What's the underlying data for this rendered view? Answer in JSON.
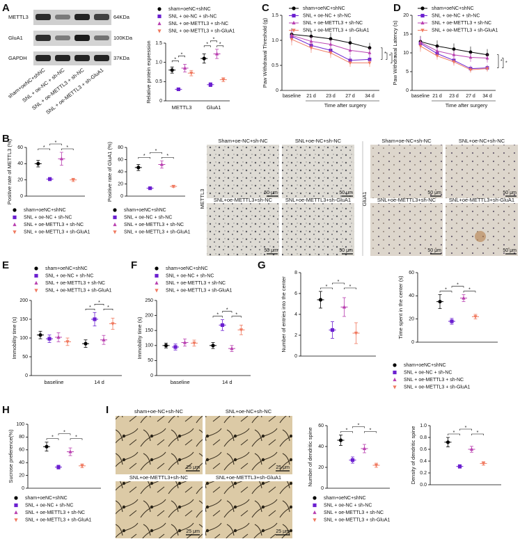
{
  "panel_labels": [
    "A",
    "B",
    "C",
    "D",
    "E",
    "F",
    "G",
    "H",
    "I"
  ],
  "blot": {
    "rows": [
      "METTL3",
      "GluA1",
      "GAPDH"
    ],
    "sizes": [
      "64KDa",
      "100KDa",
      "37KDa"
    ],
    "lanes": [
      "sham+oeNC+shNC",
      "SNL + oe-NC + sh-NC",
      "SNL + oe-METTL3 + sh-NC",
      "SNL + oe-METTL3 + sh-GluA1"
    ]
  },
  "ihc": {
    "groups": [
      "Sham+oe-NC+sh-NC",
      "SNL+oe-NC+sh-NC",
      "SNL+oe-METTL3+sh-NC",
      "SNL+oe-METTL3+sh-GluA1"
    ],
    "stains": [
      "METTL3",
      "GluA1"
    ],
    "scale": "50 μm"
  },
  "golgi": {
    "groups": [
      "sham+oe-NC+sh-NC",
      "SNL+oe-NC+sh-NC",
      "SNL+oe-METTL3+sh-NC",
      "SNL+oe-METTL3+sh-GluA1"
    ],
    "scale": "25 μm"
  },
  "chart_data": [
    {
      "type": "dot",
      "ylabel": "Relative protein expression",
      "categories": [
        "METTL3",
        "GluA1"
      ],
      "ylim": [
        0,
        1.5
      ],
      "yticks": [
        0,
        0.5,
        {
          "value": 1,
          "label": "1.0"
        },
        1.5
      ],
      "series": [
        {
          "name": "sham+oeNC+shNC",
          "color": "#000000",
          "marker": "circle",
          "values": [
            0.8,
            1.1
          ],
          "errors": [
            0.08,
            0.12
          ]
        },
        {
          "name": "SNL + oe-NC + sh-NC",
          "color": "#6b1fd0",
          "marker": "square",
          "values": [
            0.3,
            0.42
          ],
          "errors": [
            0.03,
            0.05
          ]
        },
        {
          "name": "SNL + oe-METTL3 + sh-NC",
          "color": "#b940b0",
          "marker": "triangle-up",
          "values": [
            0.85,
            1.22
          ],
          "errors": [
            0.1,
            0.12
          ]
        },
        {
          "name": "SNL + oe-METTL3 + sh-GluA1",
          "color": "#f07a60",
          "marker": "triangle-down",
          "values": [
            0.72,
            0.55
          ],
          "errors": [
            0.07,
            0.05
          ]
        }
      ],
      "significance": [
        [
          "*",
          "*"
        ],
        [
          "*",
          "*",
          "*"
        ]
      ]
    },
    {
      "type": "line",
      "ylabel": "Paw Withdrawal Threshold (g)",
      "xlabel": "Time after surgery",
      "categories": [
        "baseline",
        "21 d",
        "23 d",
        "27 d",
        "34 d"
      ],
      "ylim": [
        0,
        1.5
      ],
      "yticks": [
        0,
        0.5,
        {
          "value": 1,
          "label": "1.0"
        },
        1.5
      ],
      "series": [
        {
          "name": "sham+oeNC+shNC",
          "color": "#000000",
          "marker": "circle",
          "values": [
            1.12,
            1.08,
            1.03,
            0.95,
            0.85
          ],
          "errors": [
            0.12,
            0.12,
            0.12,
            0.12,
            0.1
          ]
        },
        {
          "name": "SNL + oe-NC + sh-NC",
          "color": "#6b1fd0",
          "marker": "square",
          "values": [
            1.08,
            0.9,
            0.8,
            0.6,
            0.62
          ],
          "errors": [
            0.12,
            0.1,
            0.1,
            0.08,
            0.1
          ]
        },
        {
          "name": "SNL + oe-METTL3 + sh-NC",
          "color": "#b940b0",
          "marker": "triangle-up",
          "values": [
            1.1,
            0.98,
            0.92,
            0.8,
            0.75
          ],
          "errors": [
            0.12,
            0.1,
            0.1,
            0.1,
            0.1
          ]
        },
        {
          "name": "SNL + oe-METTL3 + sh-GluA1",
          "color": "#f07a60",
          "marker": "triangle-down",
          "values": [
            1.02,
            0.85,
            0.75,
            0.55,
            0.55
          ],
          "errors": [
            0.12,
            0.1,
            0.1,
            0.08,
            0.08
          ]
        }
      ],
      "significance": [
        "*",
        "*",
        "*"
      ]
    },
    {
      "type": "line",
      "ylabel": "Paw Withdrawal Latency (s)",
      "xlabel": "Time after surgery",
      "categories": [
        "baseline",
        "21 d",
        "23 d",
        "27 d",
        "34 d"
      ],
      "ylim": [
        0,
        20
      ],
      "yticks": [
        0,
        5,
        10,
        15,
        20
      ],
      "series": [
        {
          "name": "sham+oeNC+shNC",
          "color": "#000000",
          "marker": "circle",
          "values": [
            13,
            11.8,
            11,
            10.2,
            9.5
          ],
          "errors": [
            1.5,
            1.5,
            1.5,
            1.5,
            1.5
          ]
        },
        {
          "name": "SNL + oe-NC + sh-NC",
          "color": "#6b1fd0",
          "marker": "square",
          "values": [
            12.5,
            9.8,
            8,
            5.8,
            6
          ],
          "errors": [
            1.5,
            1,
            1,
            0.8,
            0.8
          ]
        },
        {
          "name": "SNL + oe-METTL3 + sh-NC",
          "color": "#b940b0",
          "marker": "triangle-up",
          "values": [
            12.8,
            10.5,
            9.5,
            8.8,
            8.6
          ],
          "errors": [
            1.5,
            1.2,
            1.2,
            1.2,
            1.2
          ]
        },
        {
          "name": "SNL + oe-METTL3 + sh-GluA1",
          "color": "#f07a60",
          "marker": "triangle-down",
          "values": [
            11.8,
            9.2,
            7.6,
            5.5,
            5.8
          ],
          "errors": [
            1.5,
            1,
            1,
            0.8,
            0.8
          ]
        }
      ],
      "significance": [
        "*",
        "*"
      ]
    },
    {
      "type": "dot",
      "ylabel": "Positive rate of METTL3 (%)",
      "categories": [
        null
      ],
      "ylim": [
        0,
        60
      ],
      "yticks": [
        0,
        20,
        40,
        60
      ],
      "series": [
        {
          "name": "sham+oeNC+shNC",
          "color": "#000000",
          "marker": "circle",
          "values": [
            40
          ],
          "errors": [
            4
          ]
        },
        {
          "name": "SNL + oe-NC + sh-NC",
          "color": "#6b1fd0",
          "marker": "square",
          "values": [
            21
          ],
          "errors": [
            2
          ]
        },
        {
          "name": "SNL + oe-METTL3 + sh-NC",
          "color": "#b940b0",
          "marker": "triangle-up",
          "values": [
            46
          ],
          "errors": [
            8
          ]
        },
        {
          "name": "SNL + oe-METTL3 + sh-GluA1",
          "color": "#f07a60",
          "marker": "triangle-down",
          "values": [
            20
          ],
          "errors": [
            2
          ]
        }
      ],
      "significance": [
        [
          "*",
          "*",
          "*"
        ]
      ]
    },
    {
      "type": "dot",
      "ylabel": "Positive rate of GluA1 (%)",
      "categories": [
        null
      ],
      "ylim": [
        0,
        80
      ],
      "yticks": [
        0,
        20,
        40,
        60,
        80
      ],
      "series": [
        {
          "name": "sham+oeNC+shNC",
          "color": "#000000",
          "marker": "circle",
          "values": [
            47
          ],
          "errors": [
            5
          ]
        },
        {
          "name": "SNL + oe-NC + sh-NC",
          "color": "#6b1fd0",
          "marker": "square",
          "values": [
            13
          ],
          "errors": [
            1.5
          ]
        },
        {
          "name": "SNL + oe-METTL3 + sh-NC",
          "color": "#b940b0",
          "marker": "triangle-up",
          "values": [
            52
          ],
          "errors": [
            6
          ]
        },
        {
          "name": "SNL + oe-METTL3 + sh-GluA1",
          "color": "#f07a60",
          "marker": "triangle-down",
          "values": [
            16
          ],
          "errors": [
            1.5
          ]
        }
      ],
      "significance": [
        [
          "*",
          "*",
          "*"
        ]
      ]
    },
    {
      "type": "dot",
      "ylabel": "Immobility time (s)",
      "categories": [
        "baseline",
        "14 d"
      ],
      "ylim": [
        0,
        200
      ],
      "yticks": [
        0,
        50,
        100,
        150,
        200
      ],
      "series": [
        {
          "name": "sham+oeNC+shNC",
          "color": "#000000",
          "marker": "circle",
          "values": [
            108,
            85
          ],
          "errors": [
            10,
            10
          ]
        },
        {
          "name": "SNL + oe-NC + sh-NC",
          "color": "#6b1fd0",
          "marker": "square",
          "values": [
            98,
            150
          ],
          "errors": [
            10,
            18
          ]
        },
        {
          "name": "SNL + oe-METTL3 + sh-NC",
          "color": "#b940b0",
          "marker": "triangle-up",
          "values": [
            102,
            95
          ],
          "errors": [
            12,
            12
          ]
        },
        {
          "name": "SNL + oe-METTL3 + sh-GluA1",
          "color": "#f07a60",
          "marker": "triangle-down",
          "values": [
            90,
            138
          ],
          "errors": [
            10,
            15
          ]
        }
      ],
      "significance": [
        [],
        [
          "*",
          "*",
          "*"
        ]
      ]
    },
    {
      "type": "dot",
      "ylabel": "Immobility time (s)",
      "categories": [
        "baseline",
        "14 d"
      ],
      "ylim": [
        0,
        250
      ],
      "yticks": [
        0,
        50,
        100,
        150,
        200,
        250
      ],
      "series": [
        {
          "name": "sham+oeNC+shNC",
          "color": "#000000",
          "marker": "circle",
          "values": [
            100,
            100
          ],
          "errors": [
            8,
            10
          ]
        },
        {
          "name": "SNL + oe-NC + sh-NC",
          "color": "#6b1fd0",
          "marker": "square",
          "values": [
            95,
            168
          ],
          "errors": [
            10,
            18
          ]
        },
        {
          "name": "SNL + oe-METTL3 + sh-NC",
          "color": "#b940b0",
          "marker": "triangle-up",
          "values": [
            110,
            90
          ],
          "errors": [
            12,
            10
          ]
        },
        {
          "name": "SNL + oe-METTL3 + sh-GluA1",
          "color": "#f07a60",
          "marker": "triangle-down",
          "values": [
            108,
            152
          ],
          "errors": [
            10,
            16
          ]
        }
      ],
      "significance": [
        [],
        [
          "*",
          "*",
          "*"
        ]
      ]
    },
    {
      "type": "dot",
      "ylabel": "Number of entries into the center",
      "categories": [
        null
      ],
      "ylim": [
        0,
        8
      ],
      "yticks": [
        0,
        2,
        4,
        6,
        8
      ],
      "series": [
        {
          "name": "sham+oeNC+shNC",
          "color": "#000000",
          "marker": "circle",
          "values": [
            5.4
          ],
          "errors": [
            0.8
          ]
        },
        {
          "name": "SNL + oe-NC + sh-NC",
          "color": "#6b1fd0",
          "marker": "square",
          "values": [
            2.5
          ],
          "errors": [
            0.8
          ]
        },
        {
          "name": "SNL + oe-METTL3 + sh-NC",
          "color": "#b940b0",
          "marker": "triangle-up",
          "values": [
            4.7
          ],
          "errors": [
            0.9
          ]
        },
        {
          "name": "SNL + oe-METTL3 + sh-GluA1",
          "color": "#f07a60",
          "marker": "triangle-down",
          "values": [
            2.2
          ],
          "errors": [
            1
          ]
        }
      ],
      "significance": [
        [
          "*",
          "*",
          "*"
        ]
      ]
    },
    {
      "type": "dot",
      "ylabel": "Time spent in the center (s)",
      "categories": [
        null
      ],
      "ylim": [
        0,
        60
      ],
      "yticks": [
        0,
        20,
        40,
        60
      ],
      "series": [
        {
          "name": "sham+oeNC+shNC",
          "color": "#000000",
          "marker": "circle",
          "values": [
            35
          ],
          "errors": [
            6
          ]
        },
        {
          "name": "SNL + oe-NC + sh-NC",
          "color": "#6b1fd0",
          "marker": "square",
          "values": [
            18
          ],
          "errors": [
            2.5
          ]
        },
        {
          "name": "SNL + oe-METTL3 + sh-NC",
          "color": "#b940b0",
          "marker": "triangle-up",
          "values": [
            38
          ],
          "errors": [
            3
          ]
        },
        {
          "name": "SNL + oe-METTL3 + sh-GluA1",
          "color": "#f07a60",
          "marker": "triangle-down",
          "values": [
            22
          ],
          "errors": [
            2
          ]
        }
      ],
      "significance": [
        [
          "*",
          "*",
          "*"
        ]
      ]
    },
    {
      "type": "dot",
      "ylabel": "Sucrose preference(%)",
      "categories": [
        null
      ],
      "ylim": [
        0,
        100
      ],
      "yticks": [
        0,
        20,
        40,
        60,
        80,
        100
      ],
      "series": [
        {
          "name": "sham+oeNC+shNC",
          "color": "#000000",
          "marker": "circle",
          "values": [
            65
          ],
          "errors": [
            7
          ]
        },
        {
          "name": "SNL + oe-NC + sh-NC",
          "color": "#6b1fd0",
          "marker": "square",
          "values": [
            33
          ],
          "errors": [
            3
          ]
        },
        {
          "name": "SNL + oe-METTL3 + sh-NC",
          "color": "#b940b0",
          "marker": "triangle-up",
          "values": [
            57
          ],
          "errors": [
            6
          ]
        },
        {
          "name": "SNL + oe-METTL3 + sh-GluA1",
          "color": "#f07a60",
          "marker": "triangle-down",
          "values": [
            35
          ],
          "errors": [
            3
          ]
        }
      ],
      "significance": [
        [
          "*",
          "*",
          "*"
        ]
      ]
    },
    {
      "type": "dot",
      "ylabel": "Number of dendritic spine",
      "categories": [
        null
      ],
      "ylim": [
        0,
        60
      ],
      "yticks": [
        0,
        20,
        40,
        60
      ],
      "series": [
        {
          "name": "sham+oeNC+shNC",
          "color": "#000000",
          "marker": "circle",
          "values": [
            46
          ],
          "errors": [
            5
          ]
        },
        {
          "name": "SNL + oe-NC + sh-NC",
          "color": "#6b1fd0",
          "marker": "square",
          "values": [
            27
          ],
          "errors": [
            3
          ]
        },
        {
          "name": "SNL + oe-METTL3 + sh-NC",
          "color": "#b940b0",
          "marker": "triangle-up",
          "values": [
            38
          ],
          "errors": [
            4
          ]
        },
        {
          "name": "SNL + oe-METTL3 + sh-GluA1",
          "color": "#f07a60",
          "marker": "triangle-down",
          "values": [
            22
          ],
          "errors": [
            2
          ]
        }
      ],
      "significance": [
        [
          "*",
          "*",
          "*"
        ]
      ]
    },
    {
      "type": "dot",
      "ylabel": "Density of dendritic spine",
      "categories": [
        null
      ],
      "ylim": [
        0,
        1
      ],
      "yticks": [
        {
          "value": 0,
          "label": "0.0"
        },
        0.2,
        0.4,
        0.6,
        0.8,
        {
          "value": 1,
          "label": "1.0"
        }
      ],
      "series": [
        {
          "name": "sham+oeNC+shNC",
          "color": "#000000",
          "marker": "circle",
          "values": [
            0.72
          ],
          "errors": [
            0.08
          ]
        },
        {
          "name": "SNL + oe-NC + sh-NC",
          "color": "#6b1fd0",
          "marker": "square",
          "values": [
            0.31
          ],
          "errors": [
            0.03
          ]
        },
        {
          "name": "SNL + oe-METTL3 + sh-NC",
          "color": "#b940b0",
          "marker": "triangle-up",
          "values": [
            0.6
          ],
          "errors": [
            0.05
          ]
        },
        {
          "name": "SNL + oe-METTL3 + sh-GluA1",
          "color": "#f07a60",
          "marker": "triangle-down",
          "values": [
            0.36
          ],
          "errors": [
            0.03
          ]
        }
      ],
      "significance": [
        [
          "*",
          "*",
          "*"
        ]
      ]
    }
  ]
}
